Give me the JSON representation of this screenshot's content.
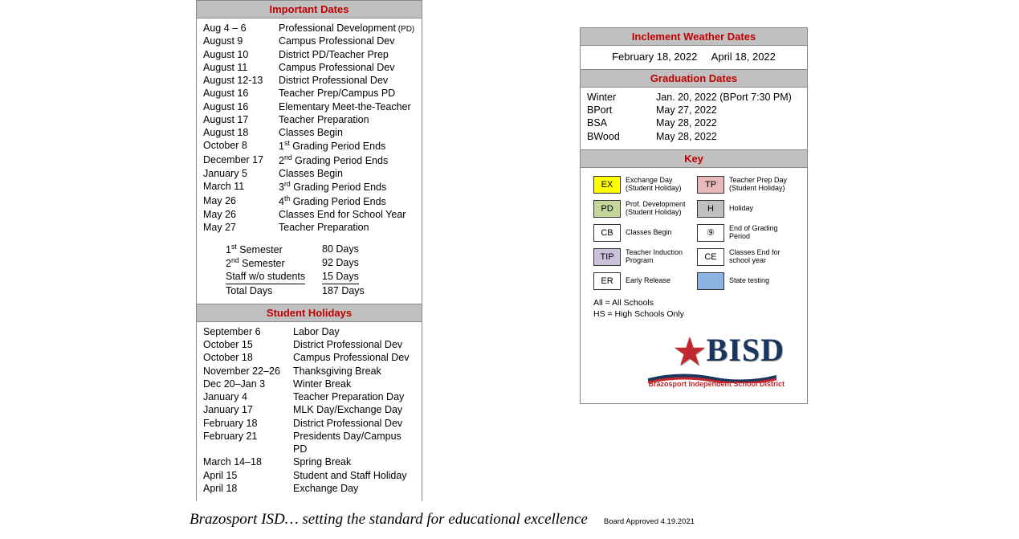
{
  "importantDates": {
    "title": "Important Dates",
    "items": [
      {
        "date": "Aug 4 – 6",
        "event": "Professional Development",
        "suffix": "(PD)"
      },
      {
        "date": "August 9",
        "event": "Campus Professional Dev"
      },
      {
        "date": "August 10",
        "event": "District PD/Teacher Prep"
      },
      {
        "date": "August 11",
        "event": "Campus Professional Dev"
      },
      {
        "date": "August 12-13",
        "event": "District Professional Dev"
      },
      {
        "date": "August 16",
        "event": "Teacher Prep/Campus PD"
      },
      {
        "date": "August 16",
        "event": "Elementary Meet-the-Teacher"
      },
      {
        "date": "August 17",
        "event": "Teacher Preparation"
      },
      {
        "date": "August 18",
        "event": "Classes Begin"
      },
      {
        "date": "October 8",
        "event_html": "1<sup>st</sup> Grading Period Ends"
      },
      {
        "date": "December 17",
        "event_html": "2<sup>nd</sup> Grading Period Ends"
      },
      {
        "date": "January 5",
        "event": "Classes Begin"
      },
      {
        "date": "March 11",
        "event_html": "3<sup>rd</sup> Grading Period Ends"
      },
      {
        "date": "May 26",
        "event_html": "4<sup>th</sup> Grading Period Ends"
      },
      {
        "date": "May 26",
        "event": "Classes End for School Year"
      },
      {
        "date": "May 27",
        "event": "Teacher Preparation"
      }
    ],
    "semesters": [
      {
        "label_html": "1<sup>st</sup> Semester",
        "days": "80 Days"
      },
      {
        "label_html": "2<sup>nd</sup> Semester",
        "days": "92 Days"
      },
      {
        "label": "Staff w/o students",
        "days": "15 Days",
        "underline": true
      },
      {
        "label": "Total Days",
        "days": "187 Days"
      }
    ]
  },
  "studentHolidays": {
    "title": "Student Holidays",
    "items": [
      {
        "date": "September 6",
        "event": "Labor Day"
      },
      {
        "date": "October 15",
        "event": "District Professional Dev"
      },
      {
        "date": "October 18",
        "event": "Campus Professional Dev"
      },
      {
        "date": "November 22–26",
        "event": "Thanksgiving Break"
      },
      {
        "date": "Dec 20–Jan 3",
        "event": "Winter Break"
      },
      {
        "date": "January 4",
        "event": "Teacher Preparation Day"
      },
      {
        "date": "January 17",
        "event": "MLK Day/Exchange Day"
      },
      {
        "date": "February 18",
        "event": "District Professional Dev"
      },
      {
        "date": "February 21",
        "event": "Presidents Day/Campus PD"
      },
      {
        "date": "March 14–18",
        "event": "Spring Break"
      },
      {
        "date": "April 15",
        "event": "Student and Staff Holiday"
      },
      {
        "date": "April 18",
        "event": "Exchange Day"
      }
    ]
  },
  "inclementWeather": {
    "title": "Inclement Weather Dates",
    "date1": "February 18, 2022",
    "date2": "April 18, 2022"
  },
  "graduation": {
    "title": "Graduation Dates",
    "items": [
      {
        "label": "Winter",
        "date": "Jan. 20, 2022 (BPort 7:30 PM)"
      },
      {
        "label": "BPort",
        "date": "May 27, 2022"
      },
      {
        "label": "BSA",
        "date": "May 28, 2022"
      },
      {
        "label": "BWood",
        "date": "May 28, 2022"
      }
    ]
  },
  "key": {
    "title": "Key",
    "items": [
      {
        "code": "EX",
        "bg": "#ffff00",
        "label": "Exchange Day (Student Holiday)"
      },
      {
        "code": "TP",
        "bg": "#e6b8b7",
        "label": "Teacher Prep Day (Student Holiday)"
      },
      {
        "code": "PD",
        "bg": "#c4d79b",
        "label": "Prof. Development (Student Holiday)"
      },
      {
        "code": "H",
        "bg": "#bfbfbf",
        "label": "Holiday"
      },
      {
        "code": "CB",
        "bg": "#ffffff",
        "label": "Classes Begin"
      },
      {
        "code": "⑨",
        "bg": "#ffffff",
        "label": "End of Grading Period"
      },
      {
        "code": "TIP",
        "bg": "#ccc0da",
        "label": "Teacher Induction Program"
      },
      {
        "code": "CE",
        "bg": "#ffffff",
        "label": "Classes End for school year"
      },
      {
        "code": "ER",
        "bg": "#ffffff",
        "label": "Early Release"
      },
      {
        "code": "",
        "bg": "#8db4e2",
        "label": "State testing"
      }
    ],
    "notes": [
      "All = All Schools",
      "HS = High Schools Only"
    ]
  },
  "logo": {
    "text": "BISD",
    "subtitle": "Brazosport Independent School District"
  },
  "footer": {
    "tagline": "Brazosport ISD… setting the standard for educational excellence",
    "approved": "Board Approved 4.19.2021"
  },
  "colors": {
    "header_bg": "#c0c0c0",
    "header_text": "#c00000",
    "navy": "#1b365d",
    "red": "#c1272d"
  }
}
